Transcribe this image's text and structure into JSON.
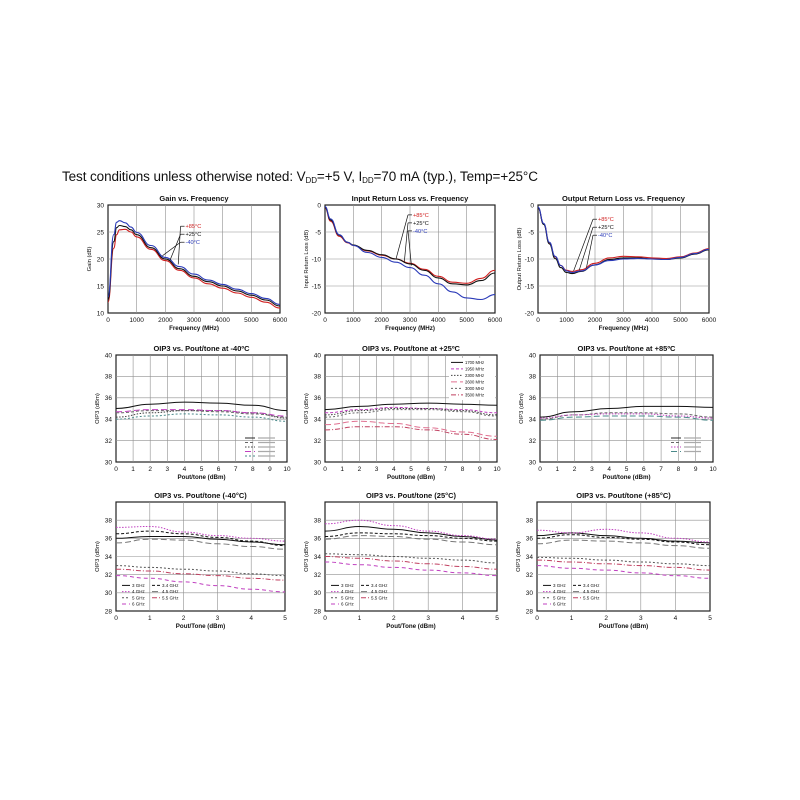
{
  "header": {
    "text_before_vdd": "Test conditions unless otherwise noted: V",
    "vdd_sub": "DD",
    "text_vdd_value": "=+5 V, I",
    "idd_sub": "DD",
    "text_after_idd": "=70 mA (typ.), Temp=+25°C"
  },
  "colors": {
    "hot": "#d02020",
    "room": "#111111",
    "cold": "#2a3ab8",
    "magenta": "#c040c0",
    "pink": "#e07090",
    "grid": "#909090"
  },
  "chart_data": [
    {
      "type": "line",
      "title": "Gain vs. Frequency",
      "xlabel": "Frequency (MHz)",
      "ylabel": "Gain (dB)",
      "xlim": [
        0,
        6000
      ],
      "ylim": [
        10,
        30
      ],
      "xticks": [
        "0",
        "1000",
        "2000",
        "3000",
        "4000",
        "5000",
        "6000"
      ],
      "yticks": [
        "10",
        "15",
        "20",
        "25",
        "30"
      ],
      "x": [
        0,
        200,
        300,
        400,
        600,
        800,
        1000,
        1500,
        2000,
        2500,
        3000,
        3500,
        4000,
        4500,
        5000,
        5500,
        6000
      ],
      "series": [
        {
          "name": "+85°C",
          "color": "#d02020",
          "values": [
            12,
            22,
            24.5,
            25.4,
            25.5,
            25.0,
            24.1,
            21.8,
            19.7,
            17.9,
            16.5,
            15.4,
            14.6,
            13.7,
            12.9,
            12.0,
            10.9
          ]
        },
        {
          "name": "+25°C",
          "color": "#111111",
          "values": [
            12.5,
            23.2,
            25.8,
            26.2,
            26.0,
            25.4,
            24.5,
            22.1,
            20.0,
            18.2,
            16.8,
            15.8,
            15.0,
            14.1,
            13.3,
            12.4,
            11.3
          ]
        },
        {
          "name": "-40°C",
          "color": "#2a3ab8",
          "values": [
            13,
            24.5,
            26.8,
            27.1,
            26.7,
            25.9,
            24.9,
            22.5,
            20.3,
            18.6,
            17.2,
            16.1,
            15.3,
            14.4,
            13.6,
            12.7,
            11.6
          ]
        }
      ],
      "legend": {
        "position": "center",
        "labels": [
          "+85°C",
          "+25°C",
          "-40°C"
        ]
      }
    },
    {
      "type": "line",
      "title": "Input Return Loss vs. Frequency",
      "xlabel": "Frequency (MHz)",
      "ylabel": "Input Return Loss (dB)",
      "xlim": [
        0,
        6000
      ],
      "ylim": [
        -20,
        0
      ],
      "xticks": [
        "0",
        "1000",
        "2000",
        "3000",
        "4000",
        "5000",
        "6000"
      ],
      "yticks": [
        "0",
        "-5",
        "-10",
        "-15",
        "-20"
      ],
      "x": [
        0,
        200,
        500,
        800,
        1000,
        1500,
        2000,
        2500,
        3000,
        3500,
        4000,
        4500,
        5000,
        5500,
        6000
      ],
      "series": [
        {
          "name": "+85°C",
          "color": "#d02020",
          "values": [
            -0.5,
            -3,
            -5.8,
            -7,
            -7.5,
            -8.5,
            -9.3,
            -10,
            -10.8,
            -11.9,
            -13.2,
            -14.3,
            -14.5,
            -13.6,
            -12.1
          ]
        },
        {
          "name": "+25°C",
          "color": "#111111",
          "values": [
            -0.4,
            -2.8,
            -5.6,
            -6.9,
            -7.4,
            -8.4,
            -9.2,
            -10,
            -10.9,
            -12.1,
            -13.5,
            -14.6,
            -14.8,
            -14,
            -12.6
          ]
        },
        {
          "name": "-40°C",
          "color": "#2a3ab8",
          "values": [
            -0.3,
            -2.6,
            -5.5,
            -6.9,
            -7.5,
            -8.8,
            -9.7,
            -10.6,
            -11.6,
            -13,
            -14.6,
            -16.1,
            -17.2,
            -17.5,
            -16.6
          ]
        }
      ],
      "legend": {
        "position": "top-right",
        "labels": [
          "+85°C",
          "+25°C",
          "-40°C"
        ]
      }
    },
    {
      "type": "line",
      "title": "Output Return Loss vs. Frequency",
      "xlabel": "Frequency (MHz)",
      "ylabel": "Output Return Loss (dB)",
      "xlim": [
        0,
        6000
      ],
      "ylim": [
        -20,
        0
      ],
      "xticks": [
        "0",
        "1000",
        "2000",
        "3000",
        "4000",
        "5000",
        "6000"
      ],
      "yticks": [
        "0",
        "-5",
        "-10",
        "-15",
        "-20"
      ],
      "x": [
        0,
        200,
        400,
        600,
        800,
        1000,
        1200,
        1500,
        2000,
        2500,
        3000,
        3500,
        4000,
        4500,
        5000,
        5500,
        6000
      ],
      "series": [
        {
          "name": "+85°C",
          "color": "#d02020",
          "values": [
            -0.5,
            -3.5,
            -7,
            -9.6,
            -11.2,
            -12.1,
            -12.3,
            -12,
            -10.8,
            -9.8,
            -9.5,
            -9.6,
            -9.8,
            -9.9,
            -9.6,
            -8.9,
            -8.1
          ]
        },
        {
          "name": "+25°C",
          "color": "#111111",
          "values": [
            -0.5,
            -3.6,
            -7.2,
            -9.9,
            -11.6,
            -12.5,
            -12.7,
            -12.3,
            -11.1,
            -10.1,
            -9.8,
            -9.8,
            -10,
            -10.1,
            -9.8,
            -9.1,
            -8.3
          ]
        },
        {
          "name": "-40°C",
          "color": "#2a3ab8",
          "values": [
            -0.4,
            -3.4,
            -6.9,
            -9.5,
            -11.2,
            -12.2,
            -12.5,
            -12.2,
            -11.1,
            -10.3,
            -10,
            -9.9,
            -10,
            -10.1,
            -9.7,
            -9,
            -8.2
          ]
        }
      ],
      "legend": {
        "position": "center",
        "labels": [
          "+85°C",
          "+25°C",
          "-40°C"
        ]
      }
    },
    {
      "type": "line",
      "title": "OIP3 vs. Pout/tone at -40ºC",
      "xlabel": "Pout/tone (dBm)",
      "ylabel": "OIP3 (dBm)",
      "xlim": [
        0,
        10
      ],
      "ylim": [
        30,
        40
      ],
      "xticks": [
        "0",
        "1",
        "2",
        "3",
        "4",
        "5",
        "6",
        "7",
        "8",
        "9",
        "10"
      ],
      "yticks": [
        "30",
        "32",
        "34",
        "36",
        "38",
        "40"
      ],
      "x": [
        0,
        2,
        4,
        6,
        8,
        10
      ],
      "series": [
        {
          "color": "#111111",
          "values": [
            35,
            35.4,
            35.6,
            35.5,
            35.3,
            34.8
          ]
        },
        {
          "color": "#666666",
          "values": [
            34.6,
            34.8,
            34.8,
            34.7,
            34.5,
            34.2
          ]
        },
        {
          "color": "#444444",
          "values": [
            34.2,
            34.6,
            34.8,
            34.8,
            34.6,
            34.1
          ]
        },
        {
          "color": "#c040c0",
          "values": [
            34.7,
            34.9,
            34.9,
            34.8,
            34.6,
            34.3
          ]
        },
        {
          "color": "#4a8a8a",
          "values": [
            34.0,
            34.3,
            34.5,
            34.4,
            34.2,
            33.8
          ]
        }
      ],
      "legend": {
        "position": "bottom-right",
        "labels": []
      }
    },
    {
      "type": "line",
      "title": "OIP3 vs. Pout/tone at +25ºC",
      "xlabel": "Pout/tone (dBm)",
      "ylabel": "OIP3 (dBm)",
      "xlim": [
        0,
        10
      ],
      "ylim": [
        30,
        40
      ],
      "xticks": [
        "0",
        "1",
        "2",
        "3",
        "4",
        "5",
        "6",
        "7",
        "8",
        "9",
        "10"
      ],
      "yticks": [
        "30",
        "32",
        "34",
        "36",
        "38",
        "40"
      ],
      "x": [
        0,
        2,
        4,
        6,
        8,
        10
      ],
      "series": [
        {
          "name": "1700 MHz",
          "color": "#111111",
          "values": [
            34.9,
            35.2,
            35.4,
            35.5,
            35.4,
            35.3
          ]
        },
        {
          "name": "1950 MHz",
          "color": "#c040c0",
          "values": [
            34.6,
            34.9,
            35.1,
            35.0,
            34.9,
            34.6
          ]
        },
        {
          "name": "2300 MHz",
          "color": "#444444",
          "values": [
            34.4,
            34.8,
            35.0,
            35.0,
            34.8,
            34.4
          ]
        },
        {
          "name": "2600 MHz",
          "color": "#e07090",
          "values": [
            33.5,
            33.8,
            33.6,
            33.2,
            32.8,
            32.4
          ]
        },
        {
          "name": "3000 MHz",
          "color": "#666666",
          "values": [
            34.2,
            34.6,
            34.9,
            34.9,
            34.7,
            34.3
          ]
        },
        {
          "name": "3500 MHz",
          "color": "#c04060",
          "values": [
            33.0,
            33.3,
            33.3,
            33.0,
            32.6,
            32.1
          ]
        }
      ],
      "legend": {
        "position": "top-right",
        "labels": [
          "1700 MHz",
          "1950 MHz",
          "2300 MHz",
          "2600 MHz",
          "3000 MHz",
          "3500 MHz"
        ]
      }
    },
    {
      "type": "line",
      "title": "OIP3 vs. Pout/tone at +85ºC",
      "xlabel": "Pout/tone (dBm)",
      "ylabel": "OIP3 (dBm)",
      "xlim": [
        0,
        10
      ],
      "ylim": [
        30,
        40
      ],
      "xticks": [
        "0",
        "1",
        "2",
        "3",
        "4",
        "5",
        "6",
        "7",
        "8",
        "9",
        "10"
      ],
      "yticks": [
        "30",
        "32",
        "34",
        "36",
        "38",
        "40"
      ],
      "x": [
        0,
        2,
        4,
        6,
        8,
        10
      ],
      "series": [
        {
          "color": "#111111",
          "values": [
            34.2,
            34.7,
            35.0,
            35.2,
            35.2,
            35.1
          ]
        },
        {
          "color": "#666666",
          "values": [
            34.0,
            34.4,
            34.6,
            34.6,
            34.5,
            34.2
          ]
        },
        {
          "color": "#c040c0",
          "values": [
            34.1,
            34.4,
            34.5,
            34.5,
            34.3,
            34.1
          ]
        },
        {
          "color": "#4a8a8a",
          "values": [
            33.9,
            34.2,
            34.3,
            34.3,
            34.2,
            33.9
          ]
        }
      ],
      "legend": {
        "position": "bottom-right",
        "labels": []
      }
    },
    {
      "type": "line",
      "title": "OIP3 vs. Pout/tone (-40°C)",
      "xlabel": "Pout/Tone (dBm)",
      "ylabel": "OIP3 (dBm)",
      "xlim": [
        0,
        5
      ],
      "ylim": [
        28,
        40
      ],
      "xticks": [
        "0",
        "1",
        "2",
        "3",
        "4",
        "5"
      ],
      "yticks": [
        "28",
        "30",
        "32",
        "34",
        "36",
        "38"
      ],
      "x": [
        0,
        1,
        2,
        3,
        4,
        5
      ],
      "series": [
        {
          "name": "3 GHz",
          "color": "#111111",
          "values": [
            36.0,
            36.2,
            36.2,
            35.9,
            35.6,
            35.3
          ]
        },
        {
          "name": "3.4 GHz",
          "color": "#111111",
          "values": [
            36.5,
            36.8,
            36.5,
            36.1,
            35.7,
            35.2
          ]
        },
        {
          "name": "4 GHz",
          "color": "#c040c0",
          "values": [
            37.2,
            37.3,
            36.7,
            36.3,
            36.0,
            35.7
          ]
        },
        {
          "name": "4.5 GHz",
          "color": "#777777",
          "values": [
            35.5,
            35.9,
            35.8,
            35.4,
            35.1,
            34.8
          ]
        },
        {
          "name": "5 GHz",
          "color": "#555555",
          "values": [
            33.0,
            32.8,
            32.6,
            32.4,
            32.1,
            31.9
          ]
        },
        {
          "name": "5.5 GHz",
          "color": "#c04060",
          "values": [
            32.6,
            32.4,
            32.1,
            31.9,
            31.6,
            31.4
          ]
        },
        {
          "name": "6 GHz",
          "color": "#c040c0",
          "values": [
            31.9,
            31.6,
            31.2,
            30.8,
            30.4,
            30.1
          ]
        }
      ],
      "legend": {
        "position": "bottom-left",
        "labels": [
          "3 GHz",
          "3.4 GHz",
          "4 GHz",
          "4.5 GHz",
          "5 GHz",
          "5.5 GHz",
          "6 GHz"
        ]
      }
    },
    {
      "type": "line",
      "title": "OIP3 vs. Pout/tone (25°C)",
      "xlabel": "Pout/Tone (dBm)",
      "ylabel": "OIP3 (dBm)",
      "xlim": [
        0,
        5
      ],
      "ylim": [
        28,
        40
      ],
      "xticks": [
        "0",
        "1",
        "2",
        "3",
        "4",
        "5"
      ],
      "yticks": [
        "28",
        "30",
        "32",
        "34",
        "36",
        "38"
      ],
      "x": [
        0,
        1,
        2,
        3,
        4,
        5
      ],
      "series": [
        {
          "name": "3 GHz",
          "color": "#111111",
          "values": [
            36.8,
            37.3,
            37.0,
            36.6,
            36.2,
            35.8
          ]
        },
        {
          "name": "3.4 GHz",
          "color": "#111111",
          "values": [
            36.2,
            36.6,
            36.5,
            36.3,
            36.0,
            35.7
          ]
        },
        {
          "name": "4 GHz",
          "color": "#c040c0",
          "values": [
            37.6,
            38.0,
            37.4,
            36.8,
            36.3,
            35.9
          ]
        },
        {
          "name": "4.5 GHz",
          "color": "#777777",
          "values": [
            35.9,
            36.3,
            36.2,
            35.9,
            35.6,
            35.3
          ]
        },
        {
          "name": "5 GHz",
          "color": "#555555",
          "values": [
            34.3,
            34.2,
            34.0,
            33.8,
            33.6,
            33.3
          ]
        },
        {
          "name": "5.5 GHz",
          "color": "#c04060",
          "values": [
            34.0,
            33.8,
            33.5,
            33.2,
            32.9,
            32.6
          ]
        },
        {
          "name": "6 GHz",
          "color": "#c040c0",
          "values": [
            33.4,
            33.1,
            32.8,
            32.5,
            32.2,
            31.9
          ]
        }
      ],
      "legend": {
        "position": "bottom-left",
        "labels": [
          "3 GHz",
          "3.4 GHz",
          "4 GHz",
          "4.5 GHz",
          "5 GHz",
          "5.5 GHz",
          "6 GHz"
        ]
      }
    },
    {
      "type": "line",
      "title": "OIP3 vs. Pout/tone (+85°C)",
      "xlabel": "Pout/Tone (dBm)",
      "ylabel": "OIP3 (dBm)",
      "xlim": [
        0,
        5
      ],
      "ylim": [
        28,
        40
      ],
      "xticks": [
        "0",
        "1",
        "2",
        "3",
        "4",
        "5"
      ],
      "yticks": [
        "28",
        "30",
        "32",
        "34",
        "36",
        "38"
      ],
      "x": [
        0,
        1,
        2,
        3,
        4,
        5
      ],
      "series": [
        {
          "name": "3 GHz",
          "color": "#111111",
          "values": [
            36.3,
            36.6,
            36.3,
            36.0,
            35.7,
            35.5
          ]
        },
        {
          "name": "3.4 GHz",
          "color": "#111111",
          "values": [
            36.0,
            36.4,
            36.1,
            35.9,
            35.6,
            35.3
          ]
        },
        {
          "name": "4 GHz",
          "color": "#c040c0",
          "values": [
            36.9,
            36.6,
            37.0,
            36.6,
            36.0,
            35.6
          ]
        },
        {
          "name": "4.5 GHz",
          "color": "#777777",
          "values": [
            35.4,
            35.8,
            35.7,
            35.5,
            35.2,
            34.9
          ]
        },
        {
          "name": "5 GHz",
          "color": "#555555",
          "values": [
            33.9,
            33.8,
            33.6,
            33.4,
            33.2,
            33.0
          ]
        },
        {
          "name": "5.5 GHz",
          "color": "#c04060",
          "values": [
            33.6,
            33.4,
            33.2,
            33.0,
            32.8,
            32.5
          ]
        },
        {
          "name": "6 GHz",
          "color": "#c040c0",
          "values": [
            33.0,
            32.7,
            32.5,
            32.2,
            31.9,
            31.6
          ]
        }
      ],
      "legend": {
        "position": "bottom-left",
        "labels": [
          "3 GHz",
          "3.4 GHz",
          "4 GHz",
          "4.5 GHz",
          "5 GHz",
          "5.5 GHz",
          "6 GHz"
        ]
      }
    }
  ]
}
